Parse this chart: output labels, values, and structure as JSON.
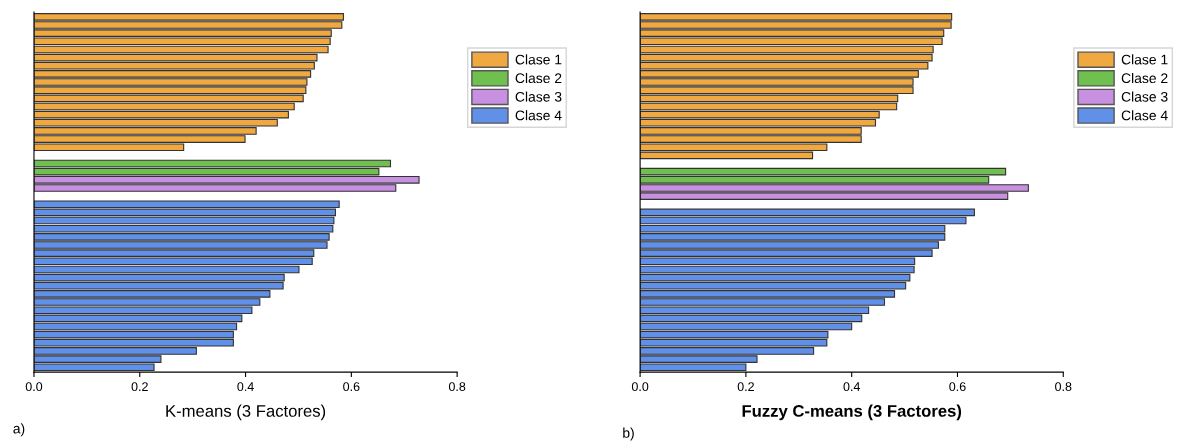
{
  "chart_data": [
    {
      "type": "bar",
      "orientation": "horizontal",
      "xlabel": "K-means (3 Factores)",
      "annotations": [
        "a)"
      ],
      "legend": "right",
      "grid": false,
      "categories": [
        null,
        null,
        null,
        null,
        null,
        null,
        null,
        null,
        null,
        null,
        null,
        null,
        null,
        null,
        null,
        null,
        null,
        null,
        null,
        null,
        null,
        null,
        null,
        null,
        null,
        null,
        null,
        null,
        null,
        null,
        null,
        null,
        null,
        null,
        null,
        null,
        null,
        null,
        null,
        null,
        null,
        null,
        null,
        null
      ],
      "xlim": [
        0,
        0.8
      ],
      "xticks": [
        {
          "value": 0,
          "label": "0.0"
        },
        0.2,
        0.4,
        0.6,
        0.8
      ],
      "series": [
        {
          "name": "Clase 1",
          "color": "#f0a840",
          "values": [
            0.585,
            0.582,
            0.562,
            0.56,
            0.556,
            0.535,
            0.53,
            0.523,
            0.516,
            0.514,
            0.509,
            0.492,
            0.481,
            0.46,
            0.42,
            0.399,
            0.283,
            null,
            null,
            null,
            null,
            null,
            null,
            null,
            null,
            null,
            null,
            null,
            null,
            null,
            null,
            null,
            null,
            null,
            null,
            null,
            null,
            null,
            null,
            null,
            null,
            null,
            null,
            null
          ]
        },
        {
          "name": "Clase 2",
          "color": "#70c050",
          "values": [
            null,
            null,
            null,
            null,
            null,
            null,
            null,
            null,
            null,
            null,
            null,
            null,
            null,
            null,
            null,
            null,
            null,
            null,
            0.674,
            0.652,
            null,
            null,
            null,
            null,
            null,
            null,
            null,
            null,
            null,
            null,
            null,
            null,
            null,
            null,
            null,
            null,
            null,
            null,
            null,
            null,
            null,
            null,
            null,
            null
          ]
        },
        {
          "name": "Clase 3",
          "color": "#c890e0",
          "values": [
            null,
            null,
            null,
            null,
            null,
            null,
            null,
            null,
            null,
            null,
            null,
            null,
            null,
            null,
            null,
            null,
            null,
            null,
            null,
            null,
            0.728,
            0.684,
            null,
            null,
            null,
            null,
            null,
            null,
            null,
            null,
            null,
            null,
            null,
            null,
            null,
            null,
            null,
            null,
            null,
            null,
            null,
            null,
            null,
            null
          ]
        },
        {
          "name": "Clase 4",
          "color": "#6090e8",
          "values": [
            null,
            null,
            null,
            null,
            null,
            null,
            null,
            null,
            null,
            null,
            null,
            null,
            null,
            null,
            null,
            null,
            null,
            null,
            null,
            null,
            null,
            null,
            null,
            0.577,
            0.57,
            0.567,
            0.565,
            0.558,
            0.554,
            0.529,
            0.526,
            0.501,
            0.473,
            0.471,
            0.446,
            0.427,
            0.412,
            0.393,
            0.383,
            0.377,
            0.377,
            0.307,
            0.24,
            0.227
          ]
        }
      ]
    },
    {
      "type": "bar",
      "orientation": "horizontal",
      "xlabel": "Fuzzy C-means (3 Factores)",
      "annotations": [
        "b)"
      ],
      "legend": "right",
      "grid": false,
      "categories": [
        null,
        null,
        null,
        null,
        null,
        null,
        null,
        null,
        null,
        null,
        null,
        null,
        null,
        null,
        null,
        null,
        null,
        null,
        null,
        null,
        null,
        null,
        null,
        null,
        null,
        null,
        null,
        null,
        null,
        null,
        null,
        null,
        null,
        null,
        null,
        null,
        null,
        null,
        null,
        null,
        null,
        null,
        null,
        null
      ],
      "xlim": [
        0,
        0.8
      ],
      "xticks": [
        {
          "value": 0,
          "label": "0.0"
        },
        0.2,
        0.4,
        0.6,
        0.8
      ],
      "series": [
        {
          "name": "Clase 1",
          "color": "#f0a840",
          "values": [
            0.589,
            0.588,
            0.574,
            0.571,
            0.554,
            0.552,
            0.544,
            0.526,
            0.516,
            0.516,
            0.487,
            0.485,
            0.452,
            0.445,
            0.418,
            0.418,
            0.353,
            0.326,
            null,
            null,
            null,
            null,
            null,
            null,
            null,
            null,
            null,
            null,
            null,
            null,
            null,
            null,
            null,
            null,
            null,
            null,
            null,
            null,
            null,
            null,
            null,
            null,
            null,
            null
          ]
        },
        {
          "name": "Clase 2",
          "color": "#70c050",
          "values": [
            null,
            null,
            null,
            null,
            null,
            null,
            null,
            null,
            null,
            null,
            null,
            null,
            null,
            null,
            null,
            null,
            null,
            null,
            null,
            0.691,
            0.659,
            null,
            null,
            null,
            null,
            null,
            null,
            null,
            null,
            null,
            null,
            null,
            null,
            null,
            null,
            null,
            null,
            null,
            null,
            null,
            null,
            null,
            null,
            null
          ]
        },
        {
          "name": "Clase 3",
          "color": "#c890e0",
          "values": [
            null,
            null,
            null,
            null,
            null,
            null,
            null,
            null,
            null,
            null,
            null,
            null,
            null,
            null,
            null,
            null,
            null,
            null,
            null,
            null,
            null,
            0.734,
            0.695,
            null,
            null,
            null,
            null,
            null,
            null,
            null,
            null,
            null,
            null,
            null,
            null,
            null,
            null,
            null,
            null,
            null,
            null,
            null,
            null,
            null
          ]
        },
        {
          "name": "Clase 4",
          "color": "#6090e8",
          "values": [
            null,
            null,
            null,
            null,
            null,
            null,
            null,
            null,
            null,
            null,
            null,
            null,
            null,
            null,
            null,
            null,
            null,
            null,
            null,
            null,
            null,
            null,
            null,
            null,
            0.632,
            0.616,
            0.576,
            0.576,
            0.564,
            0.552,
            0.519,
            0.518,
            0.51,
            0.502,
            0.481,
            0.462,
            0.432,
            0.419,
            0.4,
            0.355,
            0.353,
            0.328,
            0.221,
            0.2
          ]
        }
      ]
    }
  ]
}
